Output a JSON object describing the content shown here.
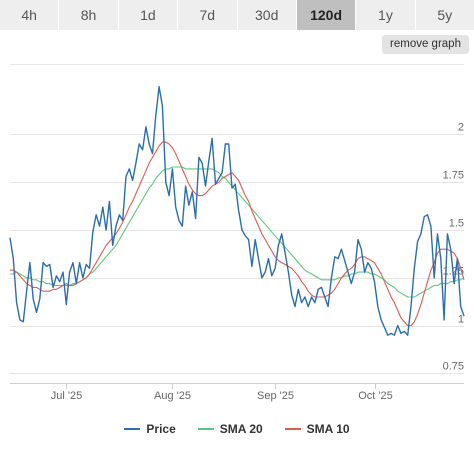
{
  "timeframes": {
    "items": [
      "4h",
      "8h",
      "1d",
      "7d",
      "30d",
      "120d",
      "1y",
      "5y"
    ],
    "active": "120d"
  },
  "remove_graph_label": "remove graph",
  "chart_data": {
    "type": "line",
    "x_ticks": [
      "Jul '25",
      "Aug '25",
      "Sep '25",
      "Oct '25"
    ],
    "y_ticks": [
      0.75,
      1,
      1.25,
      1.5,
      1.75,
      2
    ],
    "ylim": [
      0.7,
      2.4
    ],
    "grid": true,
    "legend_position": "bottom",
    "series": [
      {
        "name": "Price",
        "color": "#2a6db2",
        "values": [
          1.46,
          1.35,
          1.12,
          1.03,
          1.02,
          1.18,
          1.33,
          1.14,
          1.07,
          1.14,
          1.33,
          1.31,
          1.32,
          1.2,
          1.26,
          1.23,
          1.28,
          1.11,
          1.28,
          1.33,
          1.22,
          1.33,
          1.25,
          1.32,
          1.3,
          1.49,
          1.58,
          1.52,
          1.62,
          1.5,
          1.65,
          1.42,
          1.52,
          1.58,
          1.55,
          1.78,
          1.82,
          1.76,
          1.85,
          1.95,
          1.92,
          2.04,
          1.95,
          1.9,
          2.1,
          2.25,
          2.15,
          1.75,
          1.68,
          1.82,
          1.62,
          1.55,
          1.52,
          1.73,
          1.63,
          1.7,
          1.56,
          1.88,
          1.85,
          1.73,
          1.86,
          1.98,
          1.74,
          1.77,
          1.8,
          1.95,
          1.95,
          1.72,
          1.74,
          1.6,
          1.5,
          1.47,
          1.45,
          1.31,
          1.45,
          1.35,
          1.25,
          1.28,
          1.35,
          1.26,
          1.3,
          1.42,
          1.48,
          1.38,
          1.28,
          1.16,
          1.1,
          1.19,
          1.12,
          1.15,
          1.1,
          1.15,
          1.12,
          1.19,
          1.2,
          1.15,
          1.1,
          1.25,
          1.36,
          1.35,
          1.4,
          1.34,
          1.28,
          1.22,
          1.28,
          1.45,
          1.4,
          1.28,
          1.33,
          1.3,
          1.23,
          1.1,
          1.03,
          0.99,
          0.95,
          0.96,
          0.95,
          1.0,
          0.96,
          0.97,
          0.95,
          1.1,
          1.3,
          1.44,
          1.48,
          1.57,
          1.58,
          1.52,
          1.25,
          1.48,
          1.35,
          1.03,
          1.48,
          1.4,
          1.22,
          1.35,
          1.1,
          1.05
        ]
      },
      {
        "name": "SMA 20",
        "color": "#5cc97a",
        "values": [
          1.27,
          1.27,
          1.28,
          1.27,
          1.26,
          1.25,
          1.25,
          1.24,
          1.24,
          1.23,
          1.23,
          1.22,
          1.22,
          1.21,
          1.21,
          1.21,
          1.21,
          1.21,
          1.21,
          1.22,
          1.22,
          1.23,
          1.24,
          1.25,
          1.27,
          1.28,
          1.3,
          1.32,
          1.34,
          1.36,
          1.38,
          1.4,
          1.42,
          1.45,
          1.48,
          1.51,
          1.54,
          1.57,
          1.6,
          1.63,
          1.66,
          1.69,
          1.72,
          1.74,
          1.77,
          1.79,
          1.81,
          1.82,
          1.82,
          1.83,
          1.83,
          1.83,
          1.83,
          1.82,
          1.82,
          1.82,
          1.82,
          1.82,
          1.82,
          1.82,
          1.82,
          1.82,
          1.81,
          1.8,
          1.78,
          1.77,
          1.75,
          1.73,
          1.71,
          1.69,
          1.67,
          1.65,
          1.63,
          1.61,
          1.59,
          1.57,
          1.55,
          1.53,
          1.51,
          1.49,
          1.47,
          1.45,
          1.43,
          1.41,
          1.39,
          1.37,
          1.35,
          1.33,
          1.31,
          1.29,
          1.28,
          1.27,
          1.26,
          1.25,
          1.24,
          1.24,
          1.24,
          1.24,
          1.24,
          1.25,
          1.25,
          1.26,
          1.26,
          1.27,
          1.27,
          1.28,
          1.28,
          1.28,
          1.28,
          1.27,
          1.27,
          1.26,
          1.25,
          1.24,
          1.22,
          1.21,
          1.2,
          1.18,
          1.17,
          1.16,
          1.15,
          1.15,
          1.15,
          1.16,
          1.17,
          1.18,
          1.19,
          1.2,
          1.21,
          1.21,
          1.22,
          1.22,
          1.22,
          1.23,
          1.23,
          1.24,
          1.24,
          1.25
        ]
      },
      {
        "name": "SMA 10",
        "color": "#e05a4f",
        "values": [
          1.29,
          1.29,
          1.28,
          1.26,
          1.24,
          1.22,
          1.21,
          1.2,
          1.2,
          1.19,
          1.18,
          1.18,
          1.18,
          1.19,
          1.19,
          1.2,
          1.21,
          1.22,
          1.21,
          1.21,
          1.22,
          1.23,
          1.24,
          1.25,
          1.27,
          1.3,
          1.33,
          1.36,
          1.39,
          1.42,
          1.44,
          1.46,
          1.48,
          1.51,
          1.54,
          1.58,
          1.62,
          1.65,
          1.69,
          1.73,
          1.77,
          1.81,
          1.85,
          1.88,
          1.91,
          1.94,
          1.96,
          1.96,
          1.95,
          1.93,
          1.9,
          1.86,
          1.82,
          1.78,
          1.74,
          1.71,
          1.69,
          1.68,
          1.68,
          1.69,
          1.71,
          1.73,
          1.74,
          1.75,
          1.77,
          1.78,
          1.79,
          1.8,
          1.78,
          1.76,
          1.72,
          1.68,
          1.65,
          1.6,
          1.56,
          1.52,
          1.48,
          1.45,
          1.42,
          1.39,
          1.36,
          1.34,
          1.33,
          1.32,
          1.31,
          1.3,
          1.28,
          1.26,
          1.23,
          1.21,
          1.18,
          1.16,
          1.15,
          1.15,
          1.15,
          1.15,
          1.16,
          1.17,
          1.19,
          1.22,
          1.25,
          1.27,
          1.29,
          1.3,
          1.32,
          1.35,
          1.36,
          1.36,
          1.35,
          1.34,
          1.33,
          1.3,
          1.27,
          1.23,
          1.19,
          1.15,
          1.12,
          1.08,
          1.04,
          1.02,
          1.0,
          1.0,
          1.02,
          1.06,
          1.11,
          1.17,
          1.23,
          1.29,
          1.33,
          1.38,
          1.4,
          1.4,
          1.4,
          1.39,
          1.38,
          1.35,
          1.3,
          1.24
        ]
      }
    ]
  }
}
